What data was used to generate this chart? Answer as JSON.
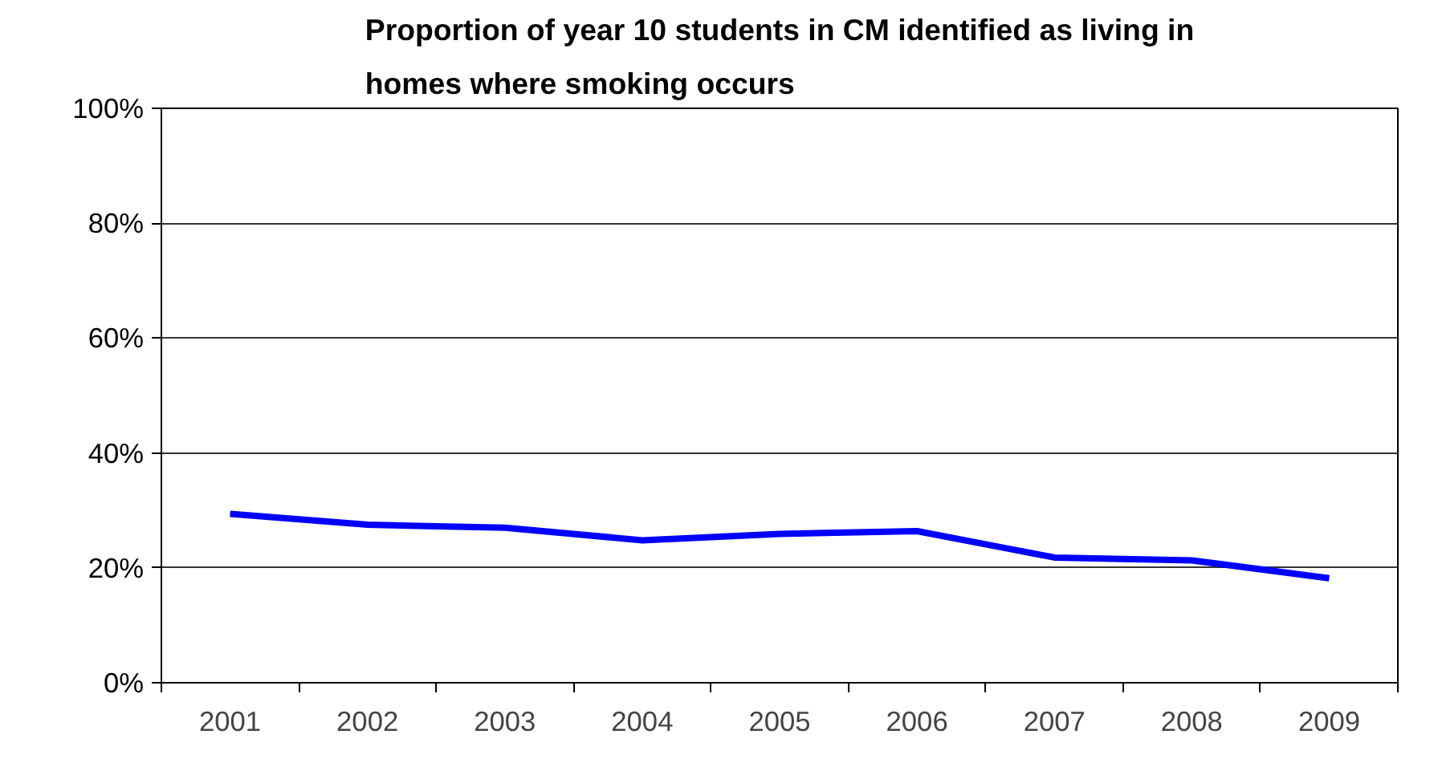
{
  "chart_data": {
    "type": "line",
    "title": "Proportion of year 10 students in CM identified as living in homes where smoking occurs",
    "categories": [
      "2001",
      "2002",
      "2003",
      "2004",
      "2005",
      "2006",
      "2007",
      "2008",
      "2009"
    ],
    "series": [
      {
        "color": "#0000ff",
        "values": [
          29.4,
          27.5,
          27,
          24.8,
          25.9,
          26.4,
          21.8,
          21.3,
          18.2
        ]
      }
    ],
    "ylim": [
      0,
      100
    ],
    "yticks": [
      {
        "value": 0,
        "label": "0%"
      },
      {
        "value": 20,
        "label": "20%"
      },
      {
        "value": 40,
        "label": "40%"
      },
      {
        "value": 60,
        "label": "60%"
      },
      {
        "value": 80,
        "label": "80%"
      },
      {
        "value": 100,
        "label": "100%"
      }
    ],
    "grid": "y",
    "marker": "none",
    "line_style": "solid"
  }
}
